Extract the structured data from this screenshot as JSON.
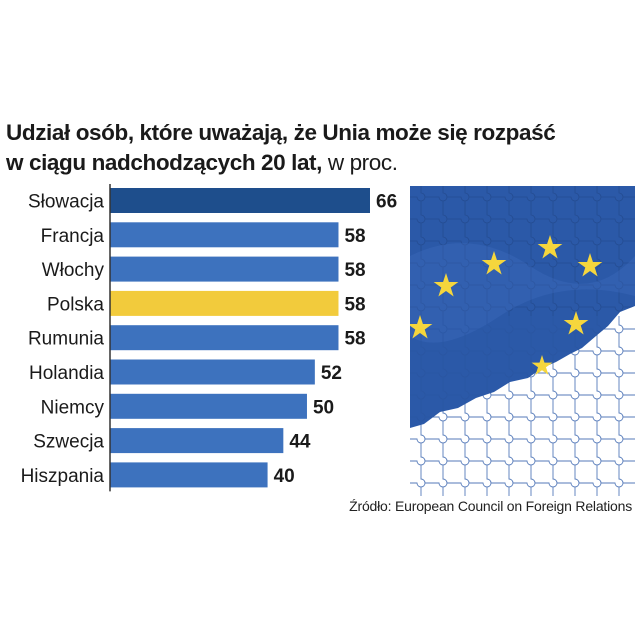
{
  "title_line1": "Udział osób, które uważają, że Unia może się rozpaść",
  "title_line2_bold": "w ciągu nadchodzących 20 lat,",
  "title_line2_normal": " w proc.",
  "source": "Źródło: European Council on Foreign Relations",
  "colors": {
    "bar": "#3d72be",
    "bar_first": "#1e4e8c",
    "highlight": "#f2cb3c",
    "flag": "#2b59a8",
    "star": "#f5d63d"
  },
  "chart_data": {
    "type": "bar",
    "orientation": "horizontal",
    "title": "Udział osób, które uważają, że Unia może się rozpaść w ciągu nadchodzących 20 lat, w proc.",
    "categories": [
      "Słowacja",
      "Francja",
      "Włochy",
      "Polska",
      "Rumunia",
      "Holandia",
      "Niemcy",
      "Szwecja",
      "Hiszpania"
    ],
    "values": [
      66,
      58,
      58,
      58,
      58,
      52,
      50,
      44,
      40
    ],
    "highlight": "Polska",
    "unit": "%",
    "xlim": [
      0,
      70
    ]
  }
}
